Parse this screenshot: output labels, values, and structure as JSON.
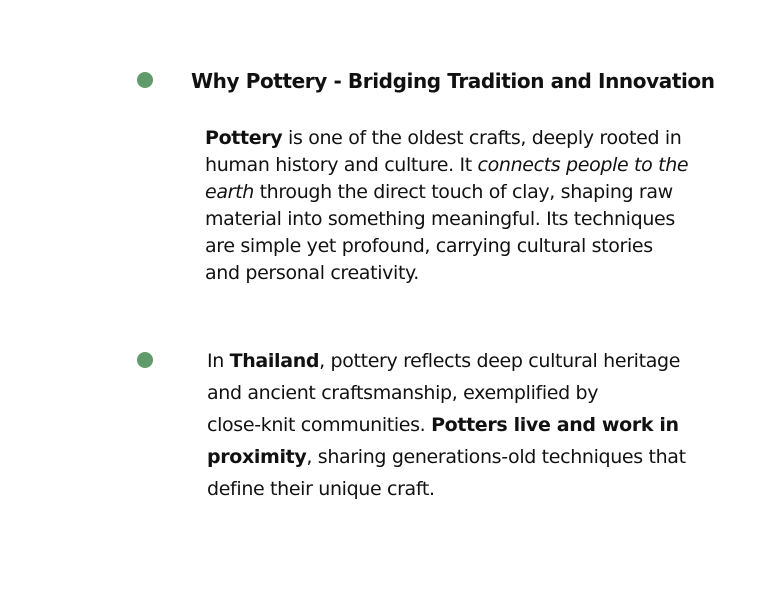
{
  "colors": {
    "bullet": "#5f9a6b",
    "text": "#111111"
  },
  "section1": {
    "bullet_icon": "green-dot",
    "heading": "Why Pottery - Bridging Tradition and Innovation",
    "p": {
      "l1_bold": "Pottery",
      "l1_rest": " is one of the oldest crafts, deeply rooted in",
      "l2_start": "human history and culture. It ",
      "l2_italic": "connects people to the",
      "l3_italic": "earth",
      "l3_rest": " through the direct touch of clay, shaping raw",
      "l4": "material into something meaningful. Its techniques",
      "l5": "are simple yet profound, carrying cultural stories",
      "l6": "and personal creativity."
    }
  },
  "section2": {
    "bullet_icon": "green-dot",
    "p": {
      "l1_start": "In ",
      "l1_bold": "Thailand",
      "l1_rest": ", pottery reflects deep cultural heritage",
      "l2": "and ancient craftsmanship, exemplified by",
      "l3_start": "close-knit communities. ",
      "l3_bold": "Potters live and work in",
      "l4_bold": "proximity",
      "l4_rest": ", sharing generations-old techniques that",
      "l5": "define their unique craft."
    }
  }
}
